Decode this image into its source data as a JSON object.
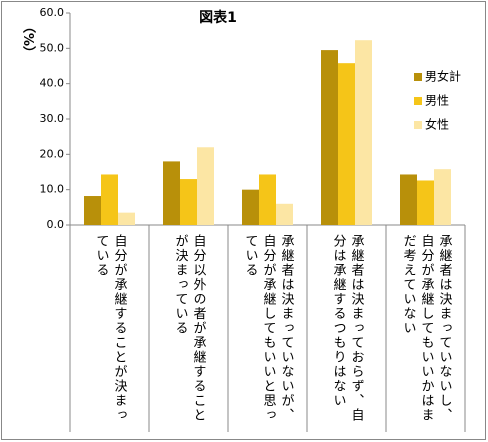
{
  "chart_data": {
    "type": "bar",
    "title": "図表1",
    "ylabel": "（%）",
    "categories": [
      "自分が承継することが決まっている",
      "自分以外の者が承継することが決まっている",
      "承継者は決まっていないが、自分が承継してもいいと思っている",
      "承継者は決まっておらず、自分は承継するつもりはない",
      "承継者は決まっていないし、自分が承継してもいいかはまだ考えていない"
    ],
    "series": [
      {
        "name": "男女計",
        "color": "#b8900a",
        "values": [
          8.2,
          18.0,
          10.0,
          49.5,
          14.3
        ]
      },
      {
        "name": "男性",
        "color": "#f5c518",
        "values": [
          14.3,
          13.0,
          14.3,
          45.8,
          12.6
        ]
      },
      {
        "name": "女性",
        "color": "#fce6a4",
        "values": [
          3.5,
          22.0,
          6.0,
          52.3,
          15.8
        ]
      }
    ],
    "ylim": [
      0,
      60
    ],
    "yticks": [
      {
        "value": 0,
        "label": "0.0"
      },
      {
        "value": 10,
        "label": "10.0"
      },
      {
        "value": 20,
        "label": "20.0"
      },
      {
        "value": 30,
        "label": "30.0"
      },
      {
        "value": 40,
        "label": "40.0"
      },
      {
        "value": 50,
        "label": "50.0"
      },
      {
        "value": 60,
        "label": "60.0"
      }
    ],
    "grid": false,
    "legend": "right"
  }
}
